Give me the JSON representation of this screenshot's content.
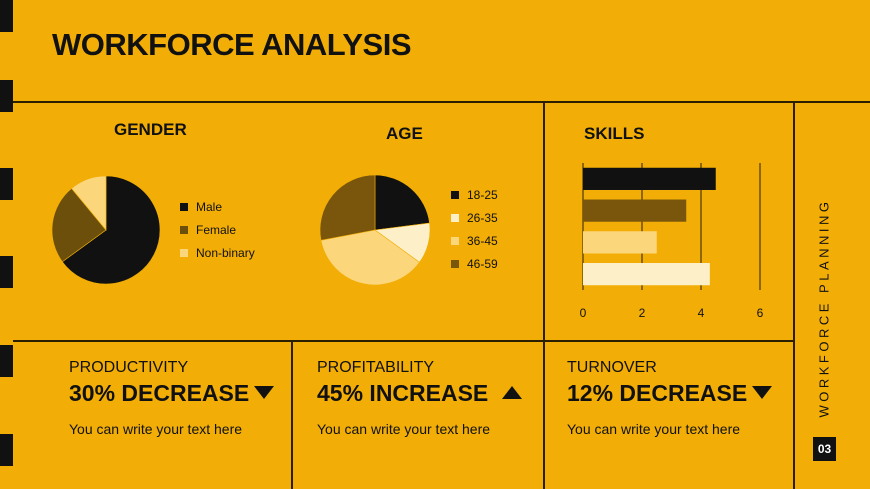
{
  "title": "WORKFORCE ANALYSIS",
  "side_label": "WORKFORCE PLANNING",
  "page_number": "03",
  "colors": {
    "background": "#F2AE06",
    "black": "#111111",
    "brown": "#6B4F0A",
    "light": "#FCD67A",
    "cream": "#FDF0C8",
    "olive": "#7A560C"
  },
  "chart_data": [
    {
      "type": "pie",
      "title": "GENDER",
      "labels": [
        "Male",
        "Female",
        "Non-binary"
      ],
      "values": [
        65,
        24,
        11
      ],
      "colors": [
        "#111111",
        "#6B4F0A",
        "#FCD67A"
      ]
    },
    {
      "type": "pie",
      "title": "AGE",
      "labels": [
        "18-25",
        "26-35",
        "36-45",
        "46-59"
      ],
      "values": [
        23,
        12,
        37,
        28
      ],
      "colors": [
        "#111111",
        "#FDF0C8",
        "#FCD67A",
        "#7A560C"
      ]
    },
    {
      "type": "bar",
      "orientation": "horizontal",
      "title": "SKILLS",
      "values": [
        4.5,
        3.5,
        2.5,
        4.3
      ],
      "colors": [
        "#111111",
        "#7A560C",
        "#FCD67A",
        "#FDF0C8"
      ],
      "xlim": [
        0,
        6
      ],
      "xticks": [
        "0",
        "2",
        "4",
        "6"
      ],
      "grid": true
    }
  ],
  "kpis": [
    {
      "label": "PRODUCTIVITY",
      "value": "30% DECREASE",
      "direction": "down",
      "text": "You can write your text here"
    },
    {
      "label": "PROFITABILITY",
      "value": "45% INCREASE",
      "direction": "up",
      "text": "You can write your text here"
    },
    {
      "label": "TURNOVER",
      "value": "12% DECREASE",
      "direction": "down",
      "text": "You can write your text here"
    }
  ]
}
